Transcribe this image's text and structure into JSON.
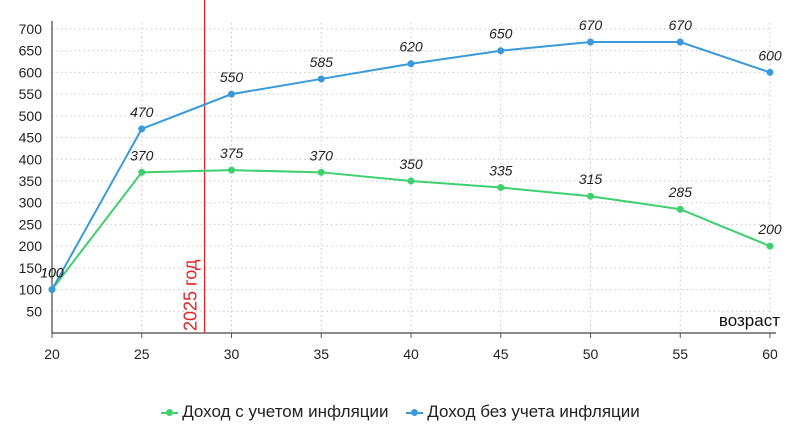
{
  "chart_data": {
    "type": "line",
    "x": [
      20,
      25,
      30,
      35,
      40,
      45,
      50,
      55,
      60
    ],
    "xlabel": "возраст",
    "ylabel": "",
    "xlim": [
      20,
      60
    ],
    "ylim": [
      0,
      700
    ],
    "yticks": [
      50,
      100,
      150,
      200,
      250,
      300,
      350,
      400,
      450,
      500,
      550,
      600,
      650,
      700
    ],
    "grid": true,
    "legend": "bottom-center",
    "series": [
      {
        "name": "Доход с учетом инфляции",
        "color": "#3ecf6e",
        "values": [
          100,
          370,
          375,
          370,
          350,
          335,
          315,
          285,
          200
        ]
      },
      {
        "name": "Доход без учета инфляции",
        "color": "#3a9ad9",
        "values": [
          100,
          470,
          550,
          585,
          620,
          650,
          670,
          670,
          600
        ]
      }
    ],
    "annotations": [
      {
        "text": "2025 год",
        "x": 28.5,
        "color": "#e02424"
      }
    ]
  }
}
